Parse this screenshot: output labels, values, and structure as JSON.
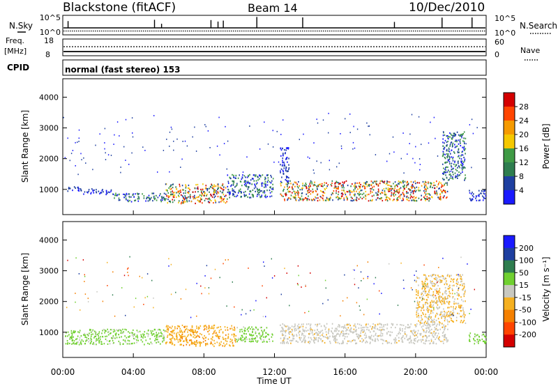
{
  "header": {
    "station": "Blackstone (fitACF)",
    "beam": "Beam 14",
    "date": "10/Dec/2010"
  },
  "top_panels": {
    "nsky_label": "N.Sky",
    "nsky_ticks": [
      "10^5",
      "10^0"
    ],
    "nsearch_label": "N.Search",
    "nsearch_ticks": [
      "10^5",
      "10^0"
    ],
    "freq_label": "Freq.",
    "freq_unit": "[MHz]",
    "freq_ticks": [
      "18",
      "8"
    ],
    "nave_label": "Nave",
    "nave_ticks": [
      "60",
      "0"
    ],
    "cpid_label": "CPID",
    "cpid_text": "normal (fast stereo) 153"
  },
  "colors": {
    "power": [
      "#1a1aff",
      "#1e3fa0",
      "#2e7d4f",
      "#3f9a45",
      "#f5c800",
      "#f59a00",
      "#ff4500",
      "#d40000"
    ],
    "velocity": [
      "#1a1aff",
      "#1e3fa0",
      "#2e7d4f",
      "#70d030",
      "#c8c8c0",
      "#f5b020",
      "#f58000",
      "#ff4500",
      "#d40000"
    ]
  },
  "chart_data": [
    {
      "type": "heatmap",
      "title": "",
      "xlabel": "Time UT",
      "ylabel": "Slant Range [km]",
      "x_ticks": [
        "00:00",
        "04:00",
        "08:00",
        "12:00",
        "16:00",
        "20:00",
        "00:00"
      ],
      "x_range_hours": [
        0,
        24
      ],
      "y_ticks": [
        1000,
        2000,
        3000,
        4000
      ],
      "ylim": [
        180,
        4600
      ],
      "colorbar_label": "Power [dB]",
      "colorbar_ticks": [
        "4",
        "8",
        "12",
        "16",
        "20",
        "24",
        "28"
      ],
      "scatter_bands": [
        {
          "from_hour": 0.1,
          "to_hour": 1.0,
          "range_km": [
            950,
            1120
          ],
          "level": "weak"
        },
        {
          "from_hour": 1.0,
          "to_hour": 2.8,
          "range_km": [
            860,
            1040
          ],
          "level": "weak"
        },
        {
          "from_hour": 2.8,
          "to_hour": 5.8,
          "range_km": [
            620,
            900
          ],
          "level": "weak-moderate"
        },
        {
          "from_hour": 5.8,
          "to_hour": 9.3,
          "range_km": [
            560,
            1200
          ],
          "level": "strong (up to ~30 dB near 07:30)"
        },
        {
          "from_hour": 9.3,
          "to_hour": 11.9,
          "range_km": [
            750,
            1500
          ],
          "level": "weak-moderate"
        },
        {
          "from_hour": 12.3,
          "to_hour": 21.8,
          "range_km": [
            650,
            1300
          ],
          "level": "moderate-strong"
        },
        {
          "from_hour": 12.3,
          "to_hour": 12.8,
          "range_km": [
            1200,
            2400
          ],
          "level": "weak"
        },
        {
          "from_hour": 21.5,
          "to_hour": 22.8,
          "range_km": [
            1300,
            2900
          ],
          "level": "weak-moderate"
        },
        {
          "from_hour": 23.0,
          "to_hour": 24.0,
          "range_km": [
            650,
            1000
          ],
          "level": "weak"
        }
      ]
    },
    {
      "type": "heatmap",
      "title": "",
      "xlabel": "Time UT",
      "ylabel": "Slant Range [km]",
      "x_ticks": [
        "00:00",
        "04:00",
        "08:00",
        "12:00",
        "16:00",
        "20:00",
        "00:00"
      ],
      "x_range_hours": [
        0,
        24
      ],
      "y_ticks": [
        1000,
        2000,
        3000,
        4000
      ],
      "ylim": [
        180,
        4600
      ],
      "colorbar_label": "Velocity [m s⁻¹]",
      "colorbar_ticks": [
        "200",
        "100",
        "50",
        "15",
        "-15",
        "-50",
        "-100",
        "-200"
      ],
      "scatter_bands": [
        {
          "from_hour": 0.1,
          "to_hour": 5.8,
          "range_km": [
            620,
            1120
          ],
          "velocity": "~ +50 (green)"
        },
        {
          "from_hour": 5.8,
          "to_hour": 9.8,
          "range_km": [
            560,
            1250
          ],
          "velocity": "~ -50 (orange)"
        },
        {
          "from_hour": 9.8,
          "to_hour": 11.9,
          "range_km": [
            700,
            1200
          ],
          "velocity": "~ +50 (green)"
        },
        {
          "from_hour": 12.3,
          "to_hour": 21.8,
          "range_km": [
            650,
            1300
          ],
          "velocity": "~ 0 (grey)"
        },
        {
          "from_hour": 20.0,
          "to_hour": 22.8,
          "range_km": [
            1300,
            2900
          ],
          "velocity": "~ -15 to -50"
        },
        {
          "from_hour": 23.0,
          "to_hour": 24.0,
          "range_km": [
            650,
            1000
          ],
          "velocity": "~ +50 (green)"
        }
      ]
    }
  ]
}
